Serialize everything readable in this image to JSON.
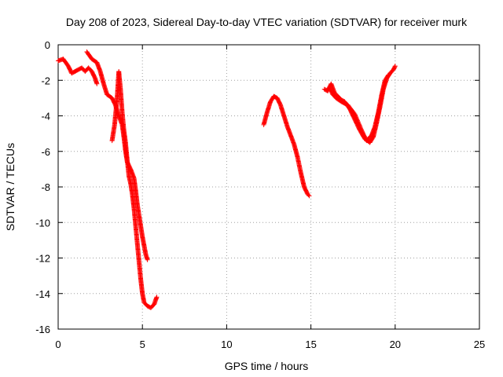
{
  "chart_data": {
    "type": "scatter",
    "title": "Day 208 of 2023, Sidereal Day-to-day VTEC variation (SDTVAR) for receiver murk",
    "xlabel": "GPS time / hours",
    "ylabel": "SDTVAR / TECUs",
    "xlim": [
      0,
      25
    ],
    "ylim": [
      -16,
      0
    ],
    "xticks": [
      "0",
      "5",
      "10",
      "15",
      "20",
      "25"
    ],
    "yticks": [
      "0",
      "-2",
      "-4",
      "-6",
      "-8",
      "-10",
      "-12",
      "-14",
      "-16"
    ],
    "grid": true,
    "marker": "+",
    "color": "#ff0000",
    "series": [
      {
        "name": "SDTVAR",
        "segments": [
          [
            [
              0.0,
              -0.9
            ],
            [
              0.3,
              -0.8
            ],
            [
              0.6,
              -1.2
            ],
            [
              0.8,
              -1.6
            ],
            [
              1.0,
              -1.5
            ],
            [
              1.2,
              -1.4
            ],
            [
              1.4,
              -1.3
            ],
            [
              1.6,
              -1.5
            ],
            [
              1.8,
              -1.3
            ],
            [
              2.0,
              -1.5
            ],
            [
              2.2,
              -1.9
            ],
            [
              2.3,
              -2.2
            ]
          ],
          [
            [
              1.7,
              -0.4
            ],
            [
              2.0,
              -0.8
            ],
            [
              2.3,
              -1.0
            ],
            [
              2.5,
              -1.5
            ],
            [
              2.7,
              -2.2
            ],
            [
              2.9,
              -2.8
            ],
            [
              3.2,
              -3.0
            ],
            [
              3.4,
              -3.4
            ],
            [
              3.6,
              -4.0
            ],
            [
              3.8,
              -4.5
            ],
            [
              3.9,
              -5.2
            ],
            [
              4.0,
              -6.0
            ],
            [
              4.1,
              -6.6
            ],
            [
              4.3,
              -7.0
            ],
            [
              4.5,
              -7.5
            ],
            [
              4.6,
              -8.2
            ],
            [
              4.7,
              -9.0
            ],
            [
              4.8,
              -9.6
            ],
            [
              4.9,
              -10.2
            ],
            [
              5.0,
              -10.8
            ],
            [
              5.1,
              -11.3
            ],
            [
              5.2,
              -11.8
            ],
            [
              5.3,
              -12.1
            ]
          ],
          [
            [
              3.2,
              -5.4
            ],
            [
              3.35,
              -4.5
            ],
            [
              3.5,
              -3.0
            ],
            [
              3.6,
              -1.5
            ],
            [
              3.7,
              -2.5
            ],
            [
              3.8,
              -3.8
            ],
            [
              3.9,
              -4.8
            ],
            [
              4.0,
              -5.5
            ],
            [
              4.1,
              -6.5
            ],
            [
              4.2,
              -7.4
            ],
            [
              4.3,
              -7.8
            ],
            [
              4.4,
              -8.4
            ],
            [
              4.5,
              -9.2
            ],
            [
              4.6,
              -10.2
            ],
            [
              4.7,
              -11.2
            ],
            [
              4.8,
              -12.2
            ],
            [
              4.9,
              -13.2
            ],
            [
              5.0,
              -14.0
            ],
            [
              5.1,
              -14.5
            ],
            [
              5.3,
              -14.7
            ],
            [
              5.5,
              -14.8
            ],
            [
              5.7,
              -14.6
            ],
            [
              5.85,
              -14.2
            ]
          ],
          [
            [
              12.2,
              -4.5
            ],
            [
              12.4,
              -3.8
            ],
            [
              12.6,
              -3.2
            ],
            [
              12.8,
              -2.9
            ],
            [
              13.0,
              -3.0
            ],
            [
              13.2,
              -3.4
            ],
            [
              13.4,
              -4.0
            ],
            [
              13.6,
              -4.6
            ],
            [
              13.8,
              -5.1
            ],
            [
              14.0,
              -5.6
            ],
            [
              14.2,
              -6.3
            ],
            [
              14.4,
              -7.2
            ],
            [
              14.6,
              -8.0
            ],
            [
              14.8,
              -8.4
            ],
            [
              14.9,
              -8.5
            ]
          ],
          [
            [
              15.8,
              -2.5
            ],
            [
              16.0,
              -2.6
            ],
            [
              16.2,
              -2.2
            ],
            [
              16.4,
              -2.7
            ],
            [
              16.6,
              -2.9
            ],
            [
              16.8,
              -3.1
            ],
            [
              17.0,
              -3.2
            ],
            [
              17.3,
              -3.6
            ],
            [
              17.6,
              -4.2
            ],
            [
              17.9,
              -4.8
            ],
            [
              18.2,
              -5.3
            ],
            [
              18.5,
              -5.5
            ],
            [
              18.7,
              -5.2
            ],
            [
              18.9,
              -4.4
            ],
            [
              19.1,
              -3.5
            ],
            [
              19.3,
              -2.5
            ],
            [
              19.5,
              -1.9
            ],
            [
              19.7,
              -1.6
            ],
            [
              19.9,
              -1.4
            ],
            [
              20.0,
              -1.2
            ]
          ],
          [
            [
              16.1,
              -2.4
            ],
            [
              16.3,
              -2.8
            ],
            [
              16.5,
              -3.0
            ],
            [
              16.8,
              -3.2
            ],
            [
              17.2,
              -3.4
            ],
            [
              17.6,
              -3.9
            ],
            [
              18.0,
              -4.8
            ],
            [
              18.3,
              -5.4
            ],
            [
              18.6,
              -5.1
            ],
            [
              18.8,
              -4.6
            ],
            [
              19.0,
              -3.8
            ],
            [
              19.2,
              -2.8
            ],
            [
              19.4,
              -2.0
            ],
            [
              19.6,
              -1.7
            ]
          ]
        ]
      }
    ]
  }
}
